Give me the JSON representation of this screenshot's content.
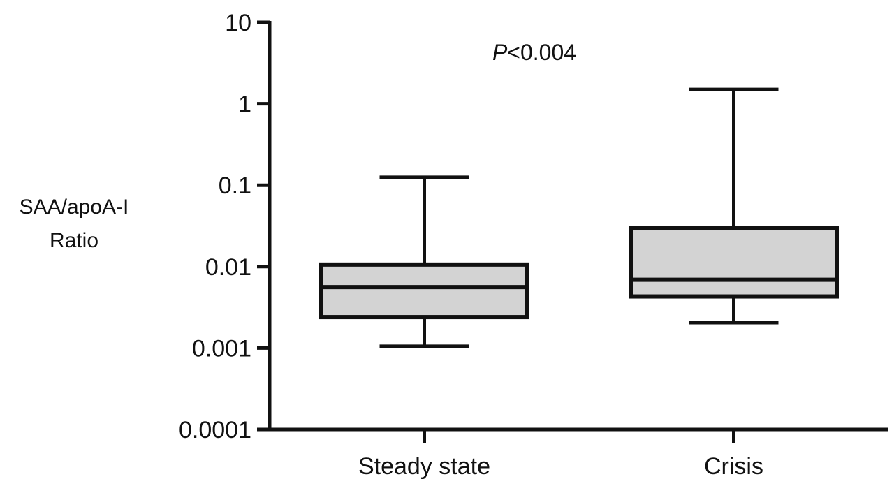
{
  "chart_data": {
    "type": "box",
    "y_scale": "log",
    "ylim": [
      0.0001,
      10
    ],
    "yticks": [
      {
        "value": 10,
        "label": "10"
      },
      {
        "value": 1,
        "label": "1"
      },
      {
        "value": 0.1,
        "label": "0.1"
      },
      {
        "value": 0.01,
        "label": "0.01"
      },
      {
        "value": 0.001,
        "label": "0.001"
      },
      {
        "value": 0.0001,
        "label": "0.0001"
      }
    ],
    "ylabel_lines": [
      "SAA/apoA-I",
      "Ratio"
    ],
    "annotation": {
      "prefix": "P",
      "text": "<0.004"
    },
    "grid": false,
    "categories": [
      "Steady state",
      "Crisis"
    ],
    "boxes": [
      {
        "category": "Steady state",
        "min": 0.00105,
        "q1": 0.0024,
        "median": 0.0056,
        "q3": 0.0106,
        "max": 0.125
      },
      {
        "category": "Crisis",
        "min": 0.00205,
        "q1": 0.0043,
        "median": 0.0069,
        "q3": 0.03,
        "max": 1.5
      }
    ],
    "colors": {
      "box_fill": "#d3d3d3",
      "stroke": "#111111"
    }
  }
}
